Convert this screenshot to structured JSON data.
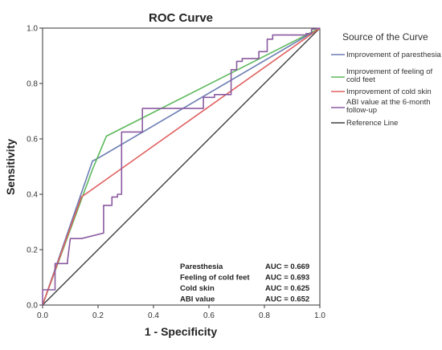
{
  "chart_data": {
    "type": "line",
    "title": "ROC Curve",
    "xlabel": "1 - Specificity",
    "ylabel": "Sensitivity",
    "xlim": [
      0,
      1
    ],
    "ylim": [
      0,
      1
    ],
    "xticks": [
      "0.0",
      "0.2",
      "0.4",
      "0.6",
      "0.8",
      "1.0"
    ],
    "yticks": [
      "0.0",
      "0.2",
      "0.4",
      "0.6",
      "0.8",
      "1.0"
    ],
    "grid": false,
    "legend": {
      "title": "Source of the Curve",
      "placement": "right"
    },
    "series": [
      {
        "name": "Improvement of paresthesia",
        "color": "#6b7db3",
        "x": [
          0,
          0.18,
          0.2,
          1.0
        ],
        "y": [
          0,
          0.52,
          0.53,
          1.0
        ]
      },
      {
        "name": "Improvement of feeling of cold feet",
        "color": "#5cb85c",
        "x": [
          0,
          0.18,
          0.23,
          1.0
        ],
        "y": [
          0,
          0.49,
          0.61,
          1.0
        ]
      },
      {
        "name": "Improvement of cold skin",
        "color": "#e06060",
        "x": [
          0,
          0.14,
          1.0
        ],
        "y": [
          0,
          0.39,
          1.0
        ]
      },
      {
        "name": "ABI value at the 6-month follow-up",
        "color": "#8a5aa0",
        "x": [
          0,
          0,
          0.045,
          0.045,
          0.09,
          0.09,
          0.1,
          0.14,
          0.22,
          0.22,
          0.25,
          0.25,
          0.27,
          0.27,
          0.285,
          0.285,
          0.36,
          0.36,
          0.58,
          0.58,
          0.62,
          0.62,
          0.68,
          0.68,
          0.7,
          0.7,
          0.72,
          0.72,
          0.78,
          0.78,
          0.81,
          0.81,
          0.83,
          0.83,
          0.95,
          0.95,
          0.97,
          0.97,
          1.0
        ],
        "y": [
          0,
          0.055,
          0.055,
          0.15,
          0.15,
          0.16,
          0.24,
          0.24,
          0.26,
          0.36,
          0.36,
          0.39,
          0.39,
          0.4,
          0.4,
          0.625,
          0.625,
          0.71,
          0.71,
          0.75,
          0.75,
          0.76,
          0.76,
          0.85,
          0.85,
          0.88,
          0.88,
          0.89,
          0.89,
          0.915,
          0.915,
          0.96,
          0.96,
          0.975,
          0.975,
          0.98,
          0.98,
          0.995,
          1.0
        ]
      },
      {
        "name": "Reference Line",
        "color": "#404040",
        "x": [
          0,
          1
        ],
        "y": [
          0,
          1
        ]
      }
    ],
    "auc_table": [
      {
        "label": "Paresthesia",
        "value": "AUC = 0.669"
      },
      {
        "label": "Feeling of cold feet",
        "value": "AUC = 0.693"
      },
      {
        "label": "Cold skin",
        "value": "AUC = 0.625"
      },
      {
        "label": "ABI value",
        "value": "AUC = 0.652"
      }
    ]
  }
}
